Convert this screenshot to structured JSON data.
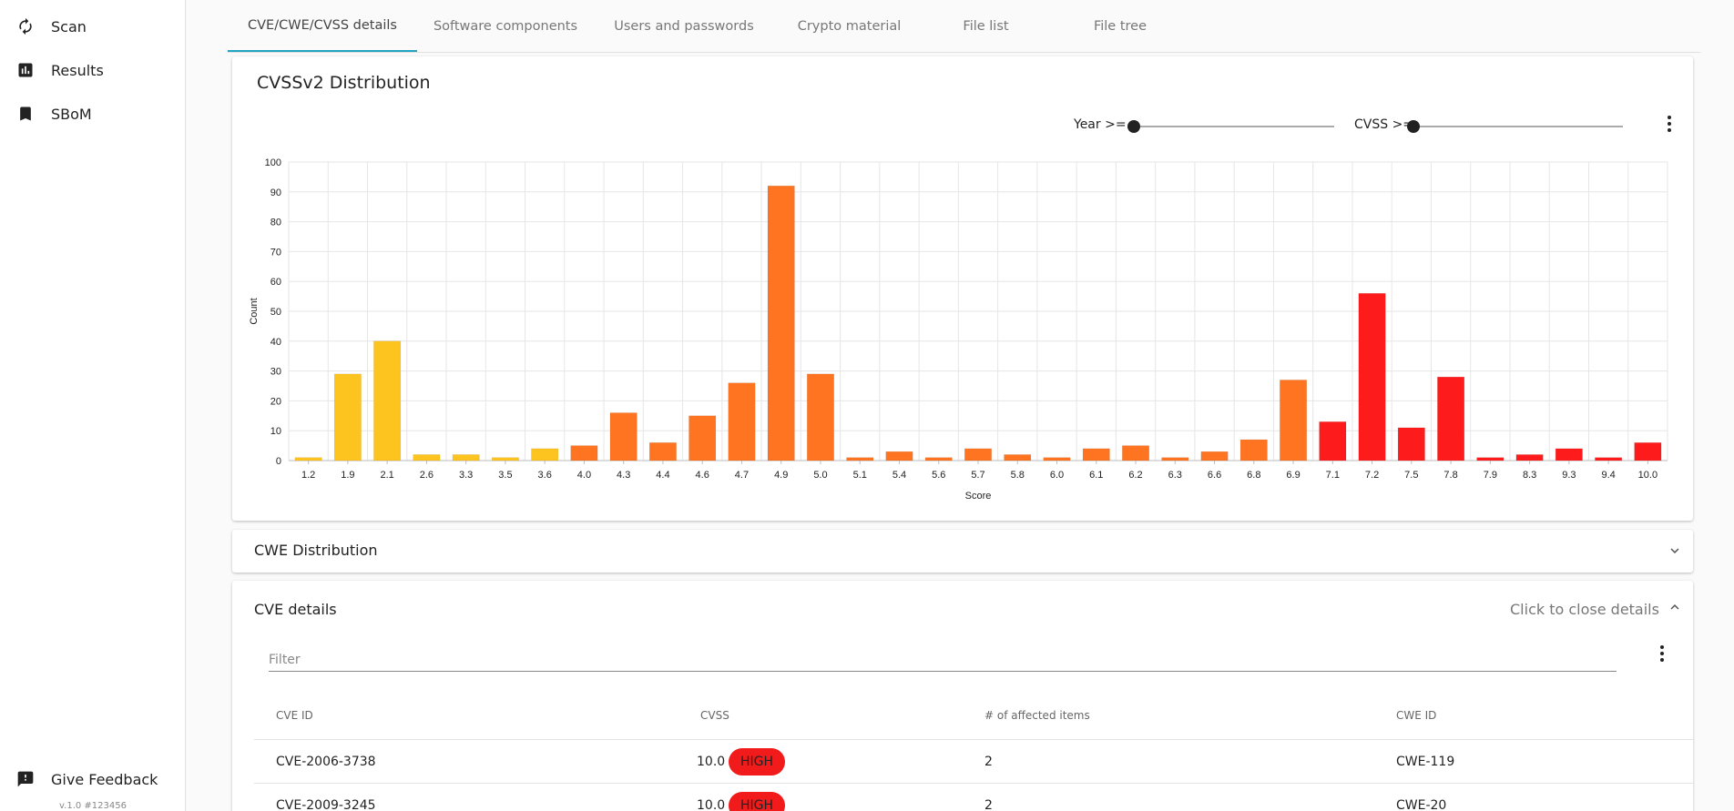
{
  "sidebar": {
    "items": [
      {
        "label": "Scan",
        "icon": "refresh-icon"
      },
      {
        "label": "Results",
        "icon": "bar-chart-icon"
      },
      {
        "label": "SBoM",
        "icon": "bookmark-icon"
      }
    ],
    "feedback": {
      "label": "Give Feedback",
      "icon": "feedback-icon"
    },
    "version": "v.1.0 #123456"
  },
  "tabs": [
    {
      "label": "CVE/CWE/CVSS details",
      "active": true
    },
    {
      "label": "Software components"
    },
    {
      "label": "Users and passwords"
    },
    {
      "label": "Crypto material"
    },
    {
      "label": "File list"
    },
    {
      "label": "File tree"
    }
  ],
  "cvss_card": {
    "title": "CVSSv2 Distribution",
    "year_filter_label": "Year >=",
    "cvss_filter_label": "CVSS >="
  },
  "chart_data": {
    "type": "bar",
    "title": "CVSSv2 Distribution",
    "xlabel": "Score",
    "ylabel": "Count",
    "ylim": [
      0,
      100
    ],
    "yticks": [
      0,
      10,
      20,
      30,
      40,
      50,
      60,
      70,
      80,
      90,
      100
    ],
    "grid": true,
    "categories": [
      "1.2",
      "1.9",
      "2.1",
      "2.6",
      "3.3",
      "3.5",
      "3.6",
      "4.0",
      "4.3",
      "4.4",
      "4.6",
      "4.7",
      "4.9",
      "5.0",
      "5.1",
      "5.4",
      "5.6",
      "5.7",
      "5.8",
      "6.0",
      "6.1",
      "6.2",
      "6.3",
      "6.6",
      "6.8",
      "6.9",
      "7.1",
      "7.2",
      "7.5",
      "7.8",
      "7.9",
      "8.3",
      "9.3",
      "9.4",
      "10.0"
    ],
    "values": [
      1,
      29,
      40,
      2,
      2,
      1,
      4,
      5,
      16,
      6,
      15,
      26,
      92,
      29,
      1,
      3,
      1,
      4,
      2,
      1,
      4,
      5,
      1,
      3,
      7,
      27,
      13,
      56,
      11,
      28,
      1,
      2,
      4,
      1,
      6
    ],
    "colors": {
      "low": "#fdc31e",
      "medium": "#fe7420",
      "high": "#fe1b1b"
    }
  },
  "cwe_section": {
    "title": "CWE Distribution"
  },
  "cve_section": {
    "title": "CVE details",
    "close_label": "Click to close details",
    "filter_placeholder": "Filter",
    "columns": [
      "CVE ID",
      "CVSS",
      "# of affected items",
      "CWE ID"
    ],
    "rows": [
      {
        "cve_id": "CVE-2006-3738",
        "cvss": "10.0",
        "severity": "HIGH",
        "affected": "2",
        "cwe_id": "CWE-119"
      },
      {
        "cve_id": "CVE-2009-3245",
        "cvss": "10.0",
        "severity": "HIGH",
        "affected": "2",
        "cwe_id": "CWE-20"
      }
    ]
  }
}
